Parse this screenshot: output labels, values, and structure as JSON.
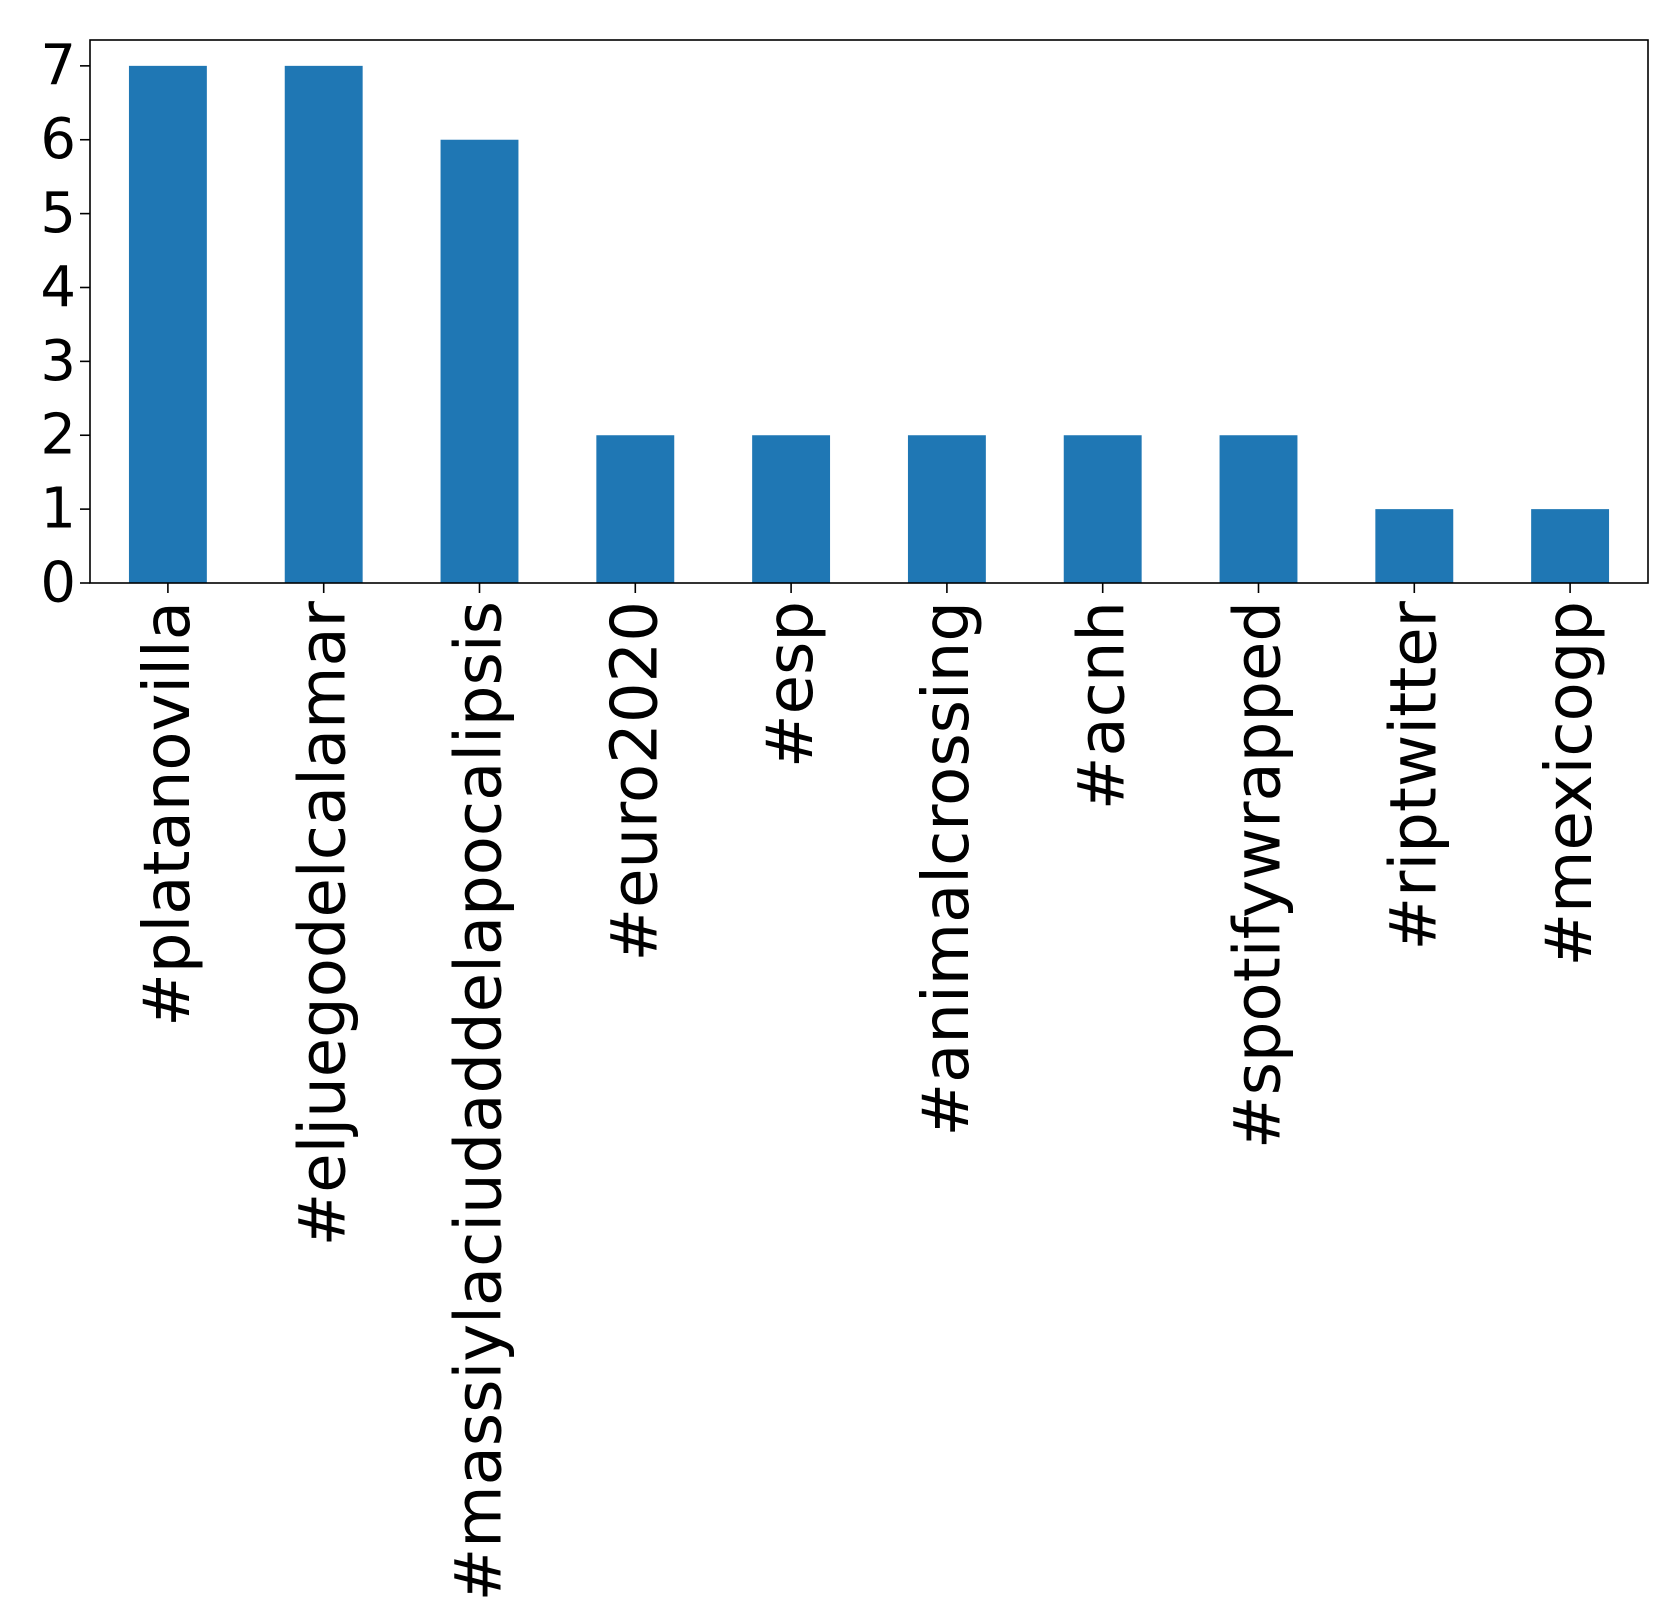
{
  "chart_data": {
    "type": "bar",
    "title": "",
    "xlabel": "",
    "ylabel": "",
    "categories": [
      "#platanovilla",
      "#eljuegodelcalamar",
      "#massiylaciudaddelapocalipsis",
      "#euro2020",
      "#esp",
      "#animalcrossing",
      "#acnh",
      "#spotifywrapped",
      "#riptwitter",
      "#mexicogp"
    ],
    "values": [
      7,
      7,
      6,
      2,
      2,
      2,
      2,
      2,
      1,
      1
    ],
    "ylim": [
      0,
      7.35
    ],
    "yticks": [
      0,
      1,
      2,
      3,
      4,
      5,
      6,
      7
    ],
    "bar_color": "#1f77b4",
    "grid": false,
    "legend": "none",
    "x_tick_rotation": "vertical"
  }
}
